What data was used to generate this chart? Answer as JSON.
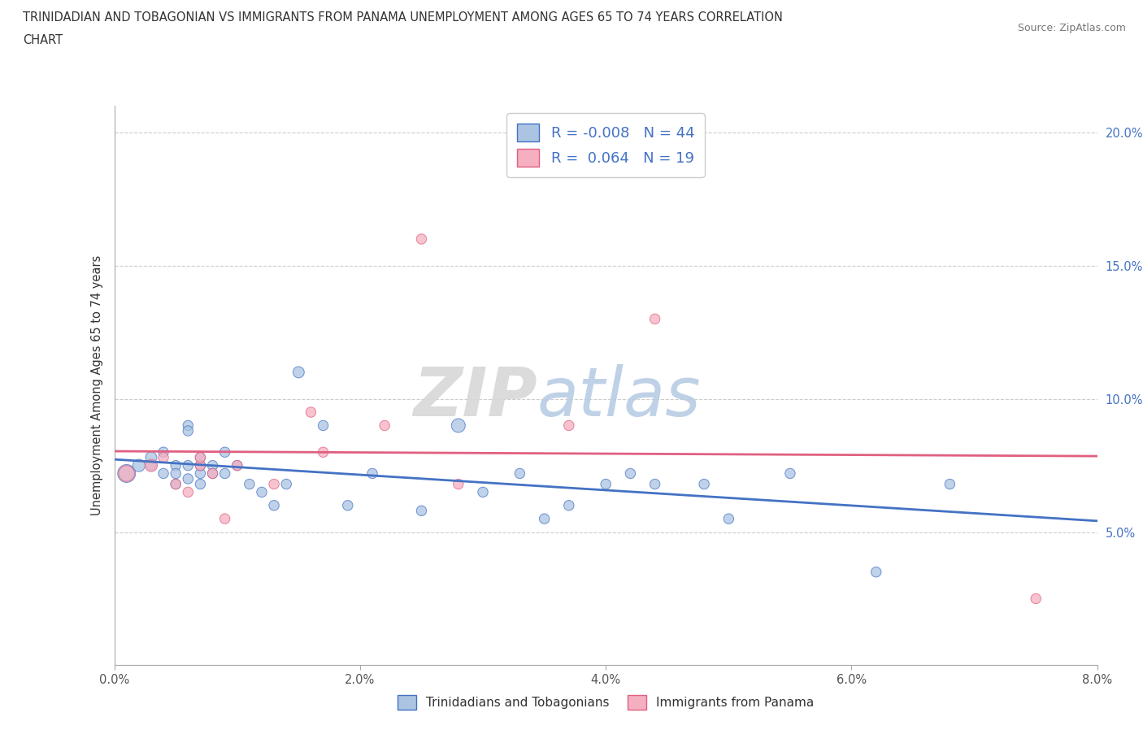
{
  "title_line1": "TRINIDADIAN AND TOBAGONIAN VS IMMIGRANTS FROM PANAMA UNEMPLOYMENT AMONG AGES 65 TO 74 YEARS CORRELATION",
  "title_line2": "CHART",
  "source_text": "Source: ZipAtlas.com",
  "ylabel": "Unemployment Among Ages 65 to 74 years",
  "xlim": [
    0.0,
    0.08
  ],
  "ylim": [
    0.0,
    0.21
  ],
  "xticks": [
    0.0,
    0.02,
    0.04,
    0.06,
    0.08
  ],
  "xticklabels": [
    "0.0%",
    "2.0%",
    "4.0%",
    "6.0%",
    "8.0%"
  ],
  "yticks": [
    0.0,
    0.05,
    0.1,
    0.15,
    0.2
  ],
  "yticklabels": [
    "",
    "5.0%",
    "10.0%",
    "15.0%",
    "20.0%"
  ],
  "blue_color": "#aac4e2",
  "pink_color": "#f5afc0",
  "blue_line_color": "#4472c4",
  "pink_line_color": "#e06080",
  "watermark_zip": "ZIP",
  "watermark_atlas": "atlas",
  "blue_scatter_x": [
    0.001,
    0.002,
    0.003,
    0.003,
    0.004,
    0.004,
    0.005,
    0.005,
    0.005,
    0.006,
    0.006,
    0.006,
    0.006,
    0.007,
    0.007,
    0.007,
    0.007,
    0.008,
    0.008,
    0.009,
    0.009,
    0.01,
    0.011,
    0.012,
    0.013,
    0.014,
    0.015,
    0.017,
    0.019,
    0.021,
    0.025,
    0.028,
    0.03,
    0.033,
    0.035,
    0.037,
    0.04,
    0.042,
    0.044,
    0.048,
    0.05,
    0.055,
    0.062,
    0.068
  ],
  "blue_scatter_y": [
    0.072,
    0.075,
    0.078,
    0.075,
    0.072,
    0.08,
    0.068,
    0.075,
    0.072,
    0.09,
    0.088,
    0.075,
    0.07,
    0.072,
    0.068,
    0.075,
    0.078,
    0.075,
    0.072,
    0.08,
    0.072,
    0.075,
    0.068,
    0.065,
    0.06,
    0.068,
    0.11,
    0.09,
    0.06,
    0.072,
    0.058,
    0.09,
    0.065,
    0.072,
    0.055,
    0.06,
    0.068,
    0.072,
    0.068,
    0.068,
    0.055,
    0.072,
    0.035,
    0.068
  ],
  "blue_scatter_size": [
    250,
    120,
    100,
    80,
    80,
    80,
    80,
    80,
    80,
    80,
    80,
    80,
    80,
    80,
    80,
    80,
    80,
    80,
    80,
    80,
    80,
    80,
    80,
    80,
    80,
    80,
    100,
    80,
    80,
    80,
    80,
    150,
    80,
    80,
    80,
    80,
    80,
    80,
    80,
    80,
    80,
    80,
    80,
    80
  ],
  "pink_scatter_x": [
    0.001,
    0.003,
    0.004,
    0.005,
    0.006,
    0.007,
    0.007,
    0.008,
    0.009,
    0.01,
    0.013,
    0.016,
    0.017,
    0.022,
    0.025,
    0.028,
    0.037,
    0.044,
    0.075
  ],
  "pink_scatter_y": [
    0.072,
    0.075,
    0.078,
    0.068,
    0.065,
    0.075,
    0.078,
    0.072,
    0.055,
    0.075,
    0.068,
    0.095,
    0.08,
    0.09,
    0.16,
    0.068,
    0.09,
    0.13,
    0.025
  ],
  "pink_scatter_size": [
    200,
    120,
    80,
    80,
    80,
    80,
    80,
    80,
    80,
    80,
    80,
    80,
    80,
    80,
    80,
    80,
    80,
    80,
    80
  ],
  "legend_label_blue": "Trinidadians and Tobagonians",
  "legend_label_pink": "Immigrants from Panama"
}
